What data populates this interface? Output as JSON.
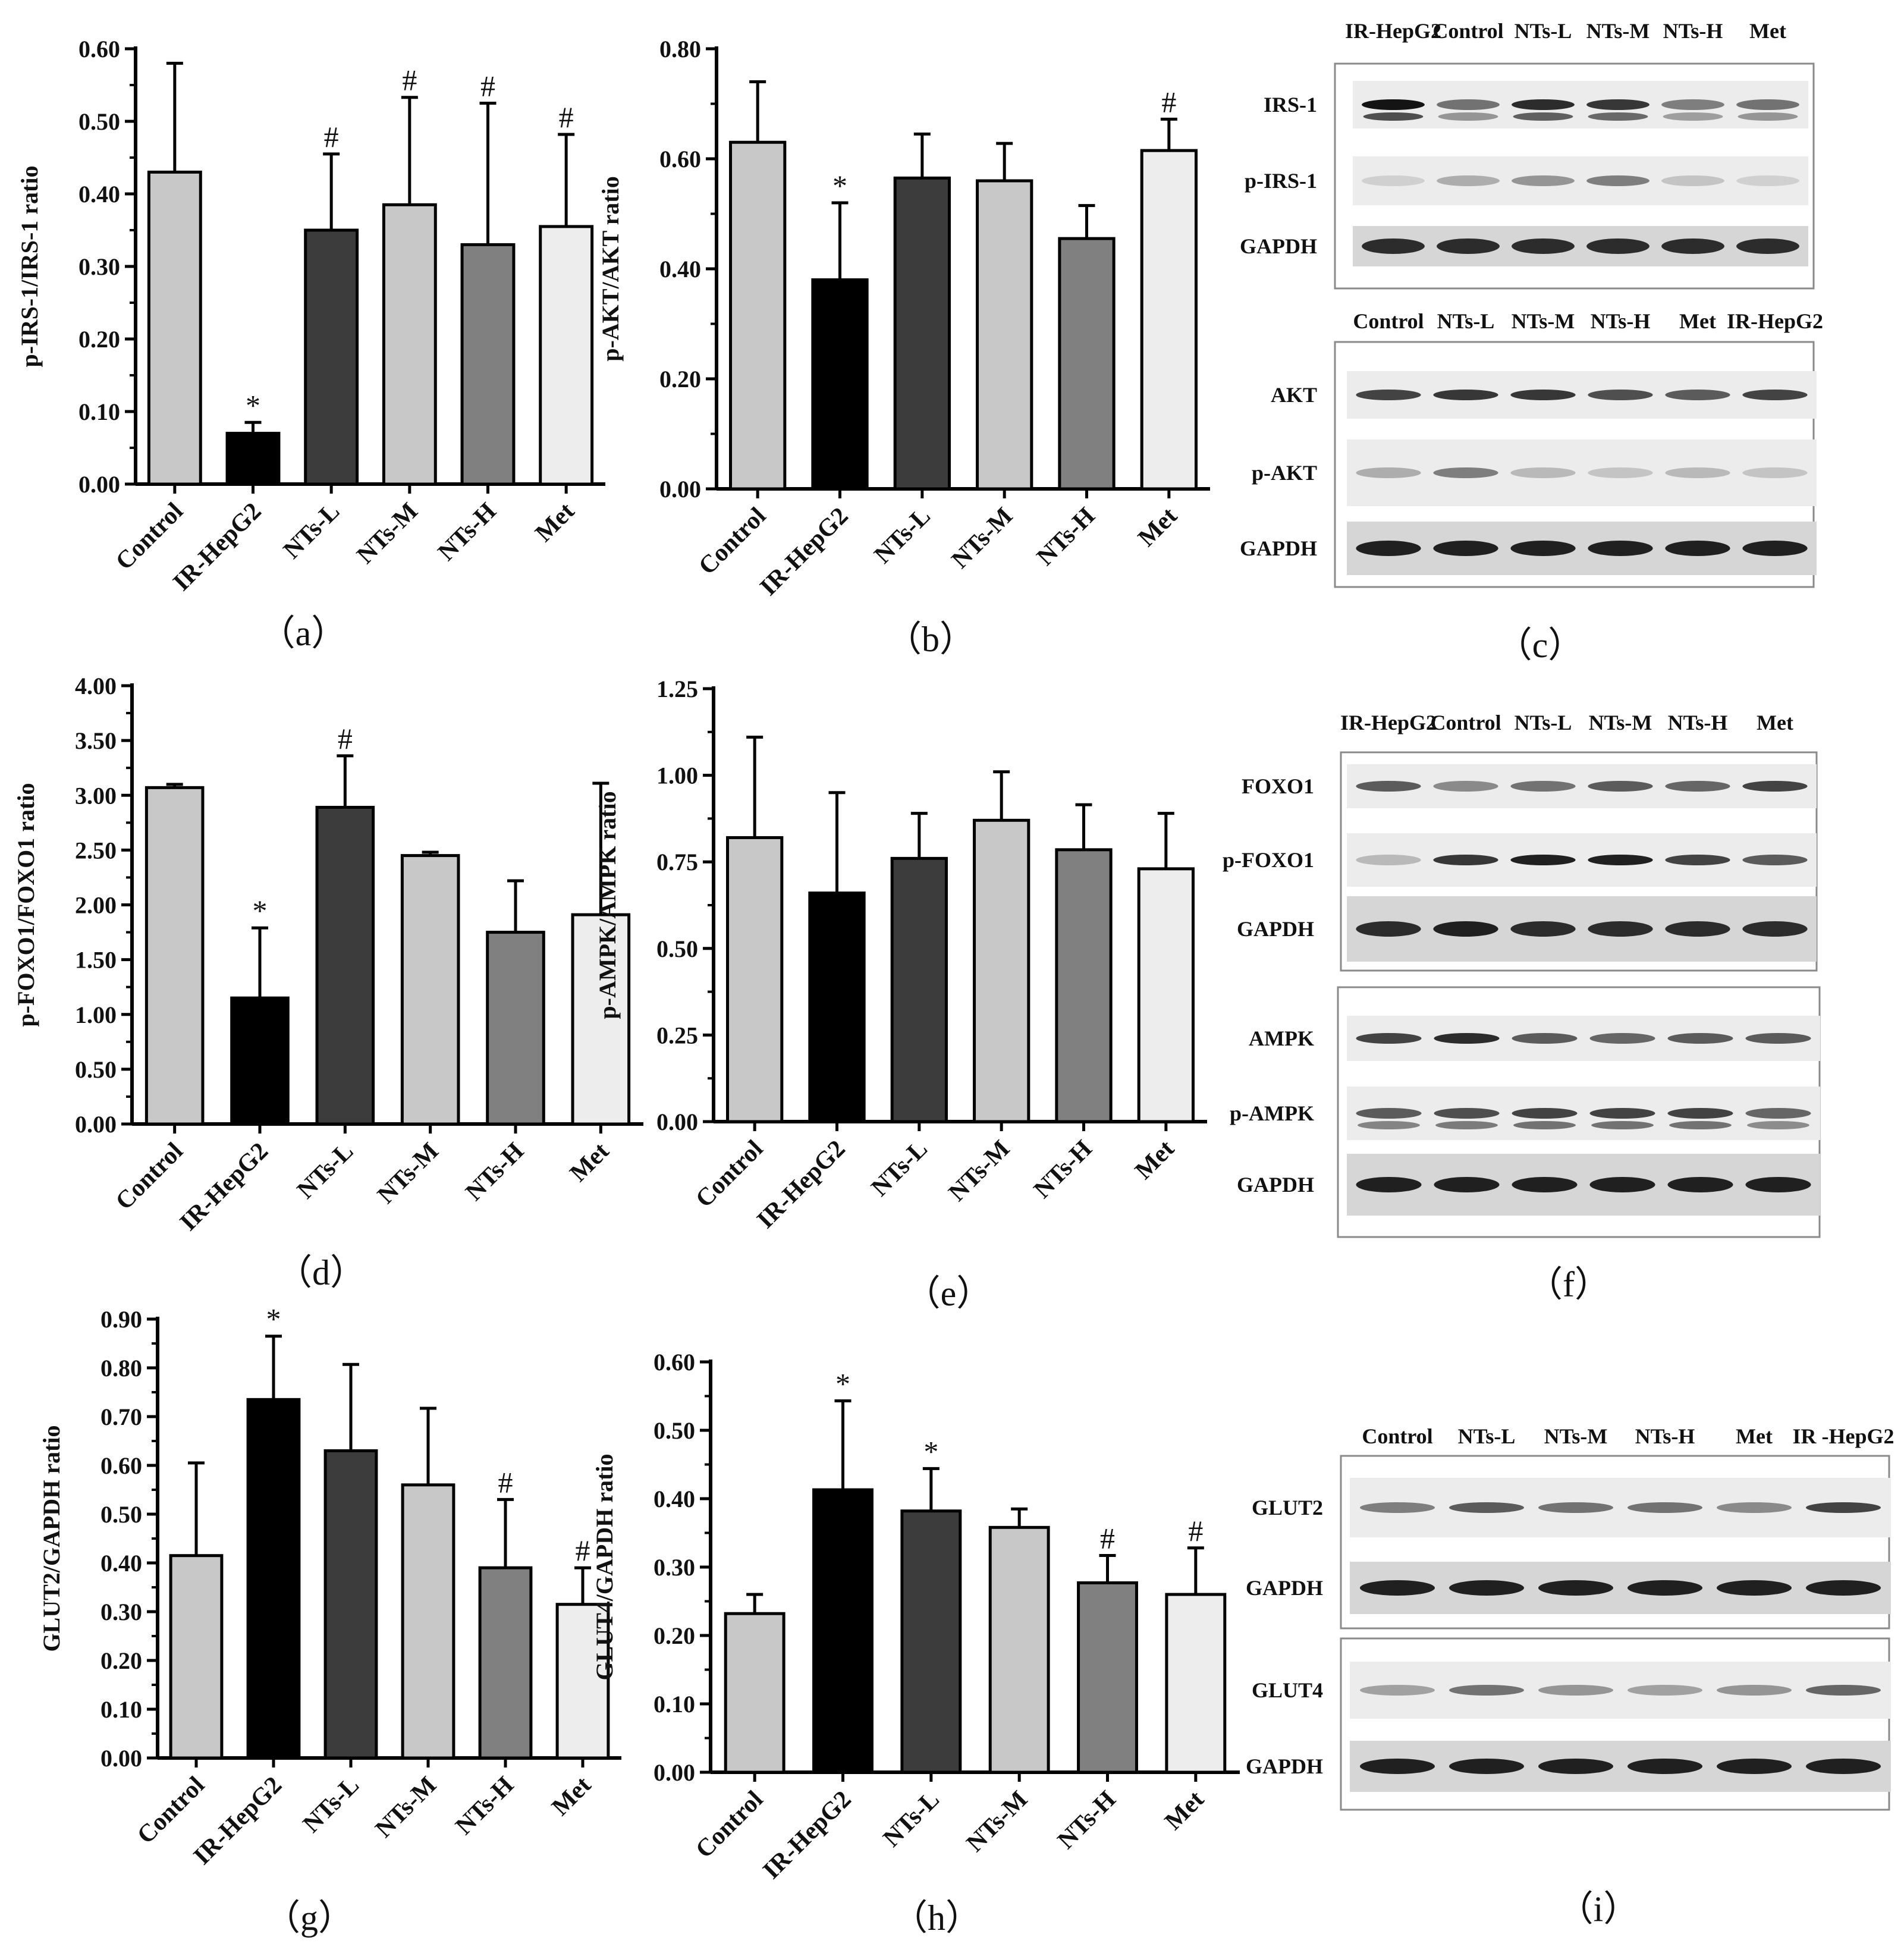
{
  "chart_data": [
    {
      "panel": "a",
      "type": "bar",
      "caption": "（a）",
      "ylabel": "p-IRS-1/IRS-1 ratio",
      "ylim": [
        0,
        0.6
      ],
      "yticks": [
        "0.00",
        "0.10",
        "0.20",
        "0.30",
        "0.40",
        "0.50",
        "0.60"
      ],
      "categories": [
        "Control",
        "IR-HepG2",
        "NTs-L",
        "NTs-M",
        "NTs-H",
        "Met"
      ],
      "values": [
        0.43,
        0.07,
        0.35,
        0.385,
        0.33,
        0.355
      ],
      "errors": [
        0.15,
        0.015,
        0.105,
        0.148,
        0.195,
        0.127
      ],
      "colors": [
        "#c8c8c8",
        "#000000",
        "#3c3c3c",
        "#c8c8c8",
        "#808080",
        "#ededed"
      ],
      "marks": [
        "",
        "*",
        "#",
        "#",
        "#",
        "#"
      ]
    },
    {
      "panel": "b",
      "type": "bar",
      "caption": "（b）",
      "ylabel": "p-AKT/AKT ratio",
      "ylim": [
        0,
        0.8
      ],
      "yticks": [
        "0.00",
        "0.20",
        "0.40",
        "0.60",
        "0.80"
      ],
      "categories": [
        "Control",
        "IR-HepG2",
        "NTs-L",
        "NTs-M",
        "NTs-H",
        "Met"
      ],
      "values": [
        0.63,
        0.38,
        0.565,
        0.56,
        0.455,
        0.615
      ],
      "errors": [
        0.11,
        0.14,
        0.08,
        0.068,
        0.06,
        0.057
      ],
      "colors": [
        "#c8c8c8",
        "#000000",
        "#3c3c3c",
        "#c8c8c8",
        "#808080",
        "#ededed"
      ],
      "marks": [
        "",
        "*",
        "",
        "",
        "",
        "#"
      ]
    },
    {
      "panel": "d",
      "type": "bar",
      "caption": "（d）",
      "ylabel": "p-FOXO1/FOXO1 ratio",
      "ylim": [
        0,
        4.0
      ],
      "yticks": [
        "0.00",
        "0.50",
        "1.00",
        "1.50",
        "2.00",
        "2.50",
        "3.00",
        "3.50",
        "4.00"
      ],
      "categories": [
        "Control",
        "IR-HepG2",
        "NTs-L",
        "NTs-M",
        "NTs-H",
        "Met"
      ],
      "values": [
        3.07,
        1.15,
        2.89,
        2.45,
        1.75,
        1.91
      ],
      "errors": [
        0.03,
        0.64,
        0.47,
        0.03,
        0.47,
        1.2
      ],
      "colors": [
        "#c8c8c8",
        "#000000",
        "#3c3c3c",
        "#c8c8c8",
        "#808080",
        "#ededed"
      ],
      "marks": [
        "",
        "*",
        "#",
        "",
        "",
        ""
      ]
    },
    {
      "panel": "e",
      "type": "bar",
      "caption": "（e）",
      "ylabel": "p-AMPK/AMPK ratio",
      "ylim": [
        0,
        1.25
      ],
      "yticks": [
        "0.00",
        "0.25",
        "0.50",
        "0.75",
        "1.00",
        "1.25"
      ],
      "categories": [
        "Control",
        "IR-HepG2",
        "NTs-L",
        "NTs-M",
        "NTs-H",
        "Met"
      ],
      "values": [
        0.82,
        0.66,
        0.76,
        0.87,
        0.785,
        0.73
      ],
      "errors": [
        0.29,
        0.29,
        0.13,
        0.14,
        0.13,
        0.16
      ],
      "colors": [
        "#c8c8c8",
        "#000000",
        "#3c3c3c",
        "#c8c8c8",
        "#808080",
        "#ededed"
      ],
      "marks": [
        "",
        "",
        "",
        "",
        "",
        ""
      ]
    },
    {
      "panel": "g",
      "type": "bar",
      "caption": "（g）",
      "ylabel": "GLUT2/GAPDH ratio",
      "ylim": [
        0,
        0.9
      ],
      "yticks": [
        "0.00",
        "0.10",
        "0.20",
        "0.30",
        "0.40",
        "0.50",
        "0.60",
        "0.70",
        "0.80",
        "0.90"
      ],
      "categories": [
        "Control",
        "IR-HepG2",
        "NTs-L",
        "NTs-M",
        "NTs-H",
        "Met"
      ],
      "values": [
        0.415,
        0.735,
        0.63,
        0.56,
        0.39,
        0.315
      ],
      "errors": [
        0.19,
        0.13,
        0.177,
        0.157,
        0.14,
        0.075
      ],
      "colors": [
        "#c8c8c8",
        "#000000",
        "#3c3c3c",
        "#c8c8c8",
        "#808080",
        "#ededed"
      ],
      "marks": [
        "",
        "*",
        "",
        "",
        "#",
        "#"
      ]
    },
    {
      "panel": "h",
      "type": "bar",
      "caption": "（h）",
      "ylabel": "GLUT4/GAPDH ratio",
      "ylim": [
        0,
        0.6
      ],
      "yticks": [
        "0.00",
        "0.10",
        "0.20",
        "0.30",
        "0.40",
        "0.50",
        "0.60"
      ],
      "categories": [
        "Control",
        "IR-HepG2",
        "NTs-L",
        "NTs-M",
        "NTs-H",
        "Met"
      ],
      "values": [
        0.232,
        0.413,
        0.382,
        0.358,
        0.277,
        0.26
      ],
      "errors": [
        0.028,
        0.13,
        0.062,
        0.027,
        0.04,
        0.068
      ],
      "colors": [
        "#c8c8c8",
        "#000000",
        "#3c3c3c",
        "#c8c8c8",
        "#808080",
        "#ededed"
      ],
      "marks": [
        "",
        "*",
        "*",
        "",
        "#",
        "#"
      ]
    }
  ],
  "blots": [
    {
      "panel": "c",
      "caption": "（c）",
      "groups": [
        {
          "lanes": [
            "IR-HepG2",
            "Control",
            "NTs-L",
            "NTs-M",
            "NTs-H",
            "Met"
          ],
          "bands": [
            {
              "label": "IRS-1",
              "intensity": [
                1.0,
                0.6,
                0.9,
                0.85,
                0.55,
                0.6
              ],
              "double": true
            },
            {
              "label": "p-IRS-1",
              "intensity": [
                0.2,
                0.35,
                0.45,
                0.55,
                0.25,
                0.2
              ],
              "double": false
            },
            {
              "label": "GAPDH",
              "intensity": [
                0.9,
                0.9,
                0.9,
                0.9,
                0.9,
                0.9
              ],
              "double": false
            }
          ]
        },
        {
          "lanes": [
            "Control",
            "NTs-L",
            "NTs-M",
            "NTs-H",
            "Met",
            "IR-HepG2"
          ],
          "bands": [
            {
              "label": "AKT",
              "intensity": [
                0.8,
                0.85,
                0.85,
                0.75,
                0.7,
                0.8
              ],
              "double": false
            },
            {
              "label": "p-AKT",
              "intensity": [
                0.35,
                0.55,
                0.3,
                0.25,
                0.3,
                0.25
              ],
              "double": false
            },
            {
              "label": "GAPDH",
              "intensity": [
                0.95,
                0.95,
                0.95,
                0.95,
                0.95,
                0.95
              ],
              "double": false
            }
          ]
        }
      ]
    },
    {
      "panel": "f",
      "caption": "（f）",
      "groups": [
        {
          "lanes": [
            "IR-HepG2",
            "Control",
            "NTs-L",
            "NTs-M",
            "NTs-H",
            "Met"
          ],
          "bands": [
            {
              "label": "FOXO1",
              "intensity": [
                0.7,
                0.5,
                0.6,
                0.7,
                0.65,
                0.8
              ],
              "double": false
            },
            {
              "label": "p-FOXO1",
              "intensity": [
                0.3,
                0.85,
                0.95,
                0.95,
                0.8,
                0.7
              ],
              "double": false
            },
            {
              "label": "GAPDH",
              "intensity": [
                0.9,
                0.95,
                0.9,
                0.9,
                0.9,
                0.9
              ],
              "double": false
            }
          ]
        },
        {
          "lanes": [
            "",
            "",
            "",
            "",
            "",
            ""
          ],
          "bands": [
            {
              "label": "AMPK",
              "intensity": [
                0.8,
                0.9,
                0.7,
                0.65,
                0.7,
                0.7
              ],
              "double": false
            },
            {
              "label": "p-AMPK",
              "intensity": [
                0.7,
                0.75,
                0.8,
                0.8,
                0.8,
                0.65
              ],
              "double": true
            },
            {
              "label": "GAPDH",
              "intensity": [
                0.95,
                0.95,
                0.95,
                0.95,
                0.95,
                0.95
              ],
              "double": false
            }
          ]
        }
      ]
    },
    {
      "panel": "i",
      "caption": "（i）",
      "groups": [
        {
          "lanes": [
            "Control",
            "NTs-L",
            "NTs-M",
            "NTs-H",
            "Met",
            "IR -HepG2"
          ],
          "bands": [
            {
              "label": "GLUT2",
              "intensity": [
                0.55,
                0.7,
                0.6,
                0.6,
                0.5,
                0.8
              ],
              "double": false
            },
            {
              "label": "GAPDH",
              "intensity": [
                0.95,
                0.95,
                0.95,
                0.95,
                0.95,
                0.95
              ],
              "double": false
            }
          ]
        },
        {
          "lanes": [
            "",
            "",
            "",
            "",
            "",
            ""
          ],
          "bands": [
            {
              "label": "GLUT4",
              "intensity": [
                0.4,
                0.6,
                0.45,
                0.4,
                0.45,
                0.65
              ],
              "double": false
            },
            {
              "label": "GAPDH",
              "intensity": [
                0.95,
                0.95,
                0.95,
                0.95,
                0.95,
                0.95
              ],
              "double": false
            }
          ]
        }
      ]
    }
  ]
}
